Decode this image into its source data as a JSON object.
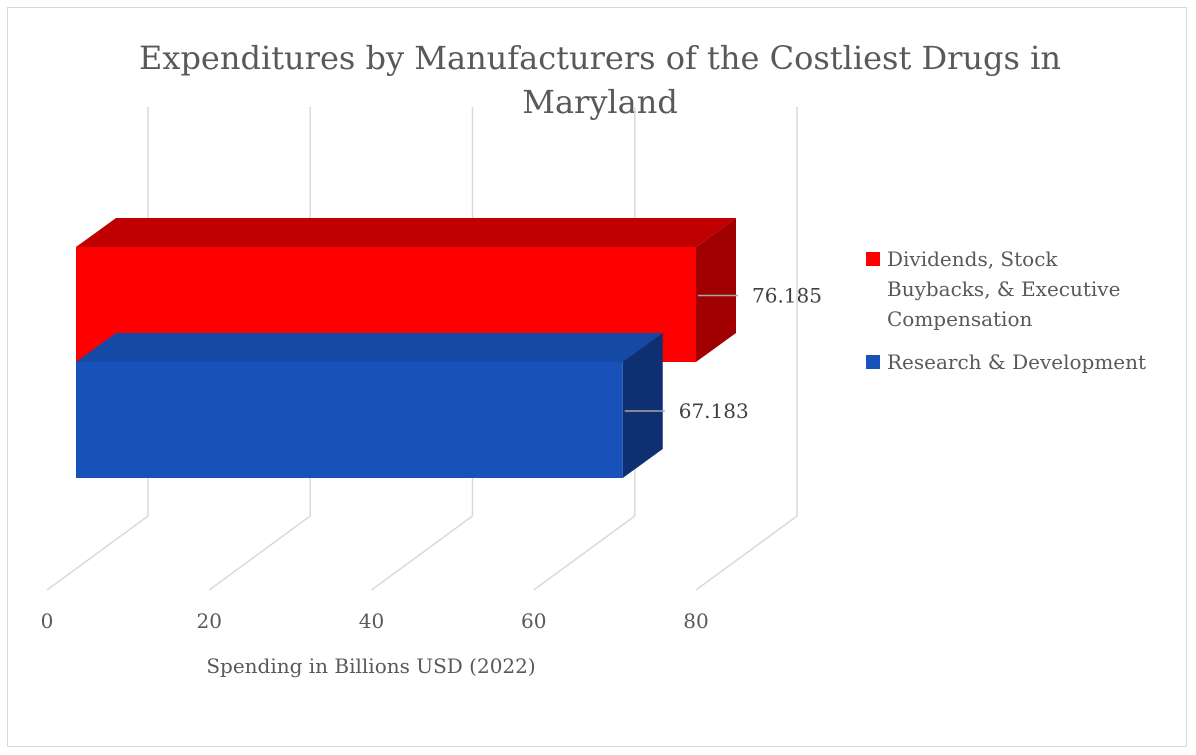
{
  "chart_data": {
    "type": "bar",
    "orientation": "horizontal",
    "style": "3d",
    "title": "Expenditures by Manufacturers of the Costliest Drugs in Maryland",
    "xlabel": "Spending in Billions USD (2022)",
    "ylabel": "",
    "xlim": [
      0,
      80
    ],
    "ticks": [
      "0",
      "20",
      "40",
      "60",
      "80"
    ],
    "grid": true,
    "legend_position": "right",
    "series": [
      {
        "name": "Dividends, Stock Buybacks, & Executive Compensation",
        "value": 76.185,
        "label": "76.185",
        "color": "#ff0000",
        "top_color": "#c00000",
        "side_color": "#a00000"
      },
      {
        "name": "Research & Development",
        "value": 67.183,
        "label": "67.183",
        "color": "#1851b9",
        "top_color": "#1449a6",
        "side_color": "#0f2f73"
      }
    ]
  }
}
